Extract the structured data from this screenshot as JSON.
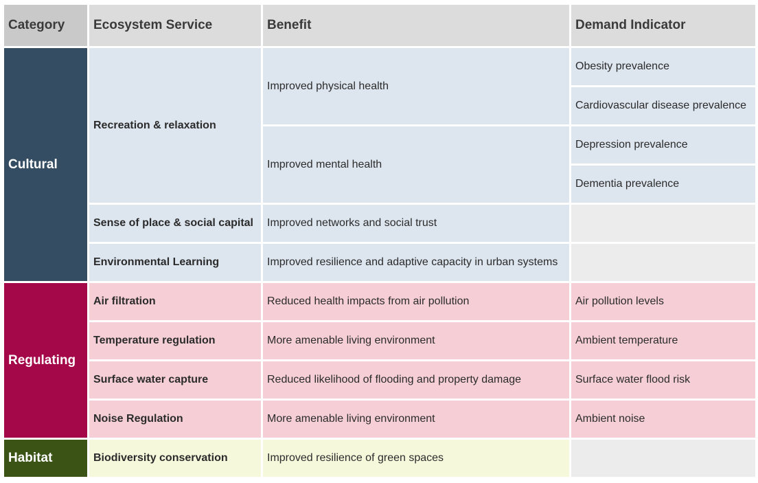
{
  "headers": {
    "category": "Category",
    "service": "Ecosystem Service",
    "benefit": "Benefit",
    "indicator": "Demand Indicator"
  },
  "categories": {
    "cultural": "Cultural",
    "regulating": "Regulating",
    "habitat": "Habitat"
  },
  "colors": {
    "cultural": "#344d63",
    "regulating": "#a50848",
    "habitat": "#3b5416",
    "cultural_cell": "#dde5ef",
    "regulating_cell": "#f6cfd6",
    "habitat_cell": "#f6f8dc",
    "empty_cell": "#ececec",
    "header": "#dcdcdc"
  },
  "rows": {
    "recreation": {
      "service": "Recreation & relaxation",
      "benefit_physical": "Improved physical health",
      "benefit_mental": "Improved mental health",
      "indicators": [
        "Obesity prevalence",
        "Cardiovascular disease prevalence",
        "Depression prevalence",
        "Dementia prevalence"
      ]
    },
    "sense_of_place": {
      "service": "Sense of place & social capital",
      "benefit": "Improved networks and social trust",
      "indicator": ""
    },
    "env_learning": {
      "service": "Environmental Learning",
      "benefit": "Improved resilience and adaptive capacity in urban systems",
      "indicator": ""
    },
    "air": {
      "service": "Air filtration",
      "benefit": "Reduced health impacts from air pollution",
      "indicator": "Air pollution levels"
    },
    "temperature": {
      "service": "Temperature regulation",
      "benefit": "More amenable living environment",
      "indicator": "Ambient temperature"
    },
    "surface_water": {
      "service": "Surface water capture",
      "benefit": "Reduced likelihood of flooding and property damage",
      "indicator": "Surface water flood risk"
    },
    "noise": {
      "service": "Noise Regulation",
      "benefit": "More amenable living environment",
      "indicator": "Ambient noise"
    },
    "biodiversity": {
      "service": "Biodiversity conservation",
      "benefit": "Improved resilience of green spaces",
      "indicator": ""
    }
  }
}
